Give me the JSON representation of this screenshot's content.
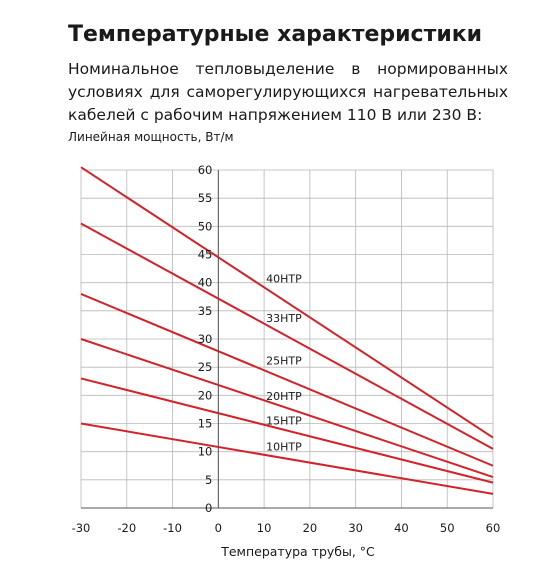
{
  "header": {
    "title": "Температурные характеристики",
    "description": "Номинальное тепловыделение в нормированных условиях для саморегулирующихся нагревательных кабелей с рабочим напряжением 110 В или 230 В:"
  },
  "chart_data": {
    "type": "line",
    "title": "",
    "xlabel": "Температура трубы, °С",
    "ylabel": "Линейная мощность, Вт/м",
    "xlim": [
      -30,
      60
    ],
    "ylim": [
      0,
      60
    ],
    "x_ticks": [
      "-30",
      "-20",
      "-10",
      "0",
      "10",
      "20",
      "30",
      "40",
      "50",
      "60"
    ],
    "y_ticks": [
      "0",
      "5",
      "10",
      "15",
      "20",
      "25",
      "30",
      "35",
      "40",
      "45",
      "50",
      "55",
      "60"
    ],
    "grid": true,
    "line_color": "#d2232a",
    "series": [
      {
        "name": "40НТР",
        "x": [
          -30,
          60
        ],
        "y": [
          60.5,
          12.5
        ]
      },
      {
        "name": "33НТР",
        "x": [
          -30,
          60
        ],
        "y": [
          50.5,
          10.5
        ]
      },
      {
        "name": "25НТР",
        "x": [
          -30,
          60
        ],
        "y": [
          38,
          7.5
        ]
      },
      {
        "name": "20НТР",
        "x": [
          -30,
          60
        ],
        "y": [
          30,
          5.5
        ]
      },
      {
        "name": "15НТР",
        "x": [
          -30,
          60
        ],
        "y": [
          23,
          4.5
        ]
      },
      {
        "name": "10НТР",
        "x": [
          -30,
          60
        ],
        "y": [
          15,
          2.5
        ]
      }
    ]
  }
}
